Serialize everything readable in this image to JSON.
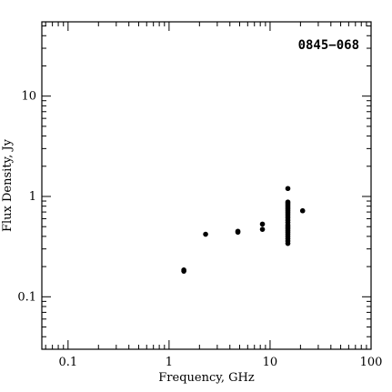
{
  "chart_data": {
    "type": "scatter",
    "title": "0845−068",
    "xlabel": "Frequency, GHz",
    "ylabel": "Flux Density, Jy",
    "xscale": "log",
    "yscale": "log",
    "xlim": [
      0.055,
      100
    ],
    "ylim": [
      0.03,
      55
    ],
    "x_tick_labels": [
      "0.1",
      "1",
      "10",
      "100"
    ],
    "y_tick_labels": [
      "0.1",
      "1",
      "10"
    ],
    "grid": false,
    "points": [
      {
        "x": 1.4,
        "y": 0.18
      },
      {
        "x": 1.4,
        "y": 0.185
      },
      {
        "x": 2.3,
        "y": 0.42
      },
      {
        "x": 4.8,
        "y": 0.44
      },
      {
        "x": 4.8,
        "y": 0.45
      },
      {
        "x": 8.4,
        "y": 0.47
      },
      {
        "x": 8.4,
        "y": 0.53
      },
      {
        "x": 15,
        "y": 1.2
      },
      {
        "x": 15,
        "y": 0.88
      },
      {
        "x": 15,
        "y": 0.85
      },
      {
        "x": 15,
        "y": 0.82
      },
      {
        "x": 15,
        "y": 0.79
      },
      {
        "x": 15,
        "y": 0.76
      },
      {
        "x": 15,
        "y": 0.73
      },
      {
        "x": 15,
        "y": 0.7
      },
      {
        "x": 15,
        "y": 0.67
      },
      {
        "x": 15,
        "y": 0.64
      },
      {
        "x": 15,
        "y": 0.61
      },
      {
        "x": 15,
        "y": 0.58
      },
      {
        "x": 15,
        "y": 0.55
      },
      {
        "x": 15,
        "y": 0.52
      },
      {
        "x": 15,
        "y": 0.5
      },
      {
        "x": 15,
        "y": 0.48
      },
      {
        "x": 15,
        "y": 0.46
      },
      {
        "x": 15,
        "y": 0.44
      },
      {
        "x": 15,
        "y": 0.42
      },
      {
        "x": 15,
        "y": 0.4
      },
      {
        "x": 15,
        "y": 0.38
      },
      {
        "x": 15,
        "y": 0.36
      },
      {
        "x": 15,
        "y": 0.34
      },
      {
        "x": 21,
        "y": 0.72
      }
    ]
  }
}
